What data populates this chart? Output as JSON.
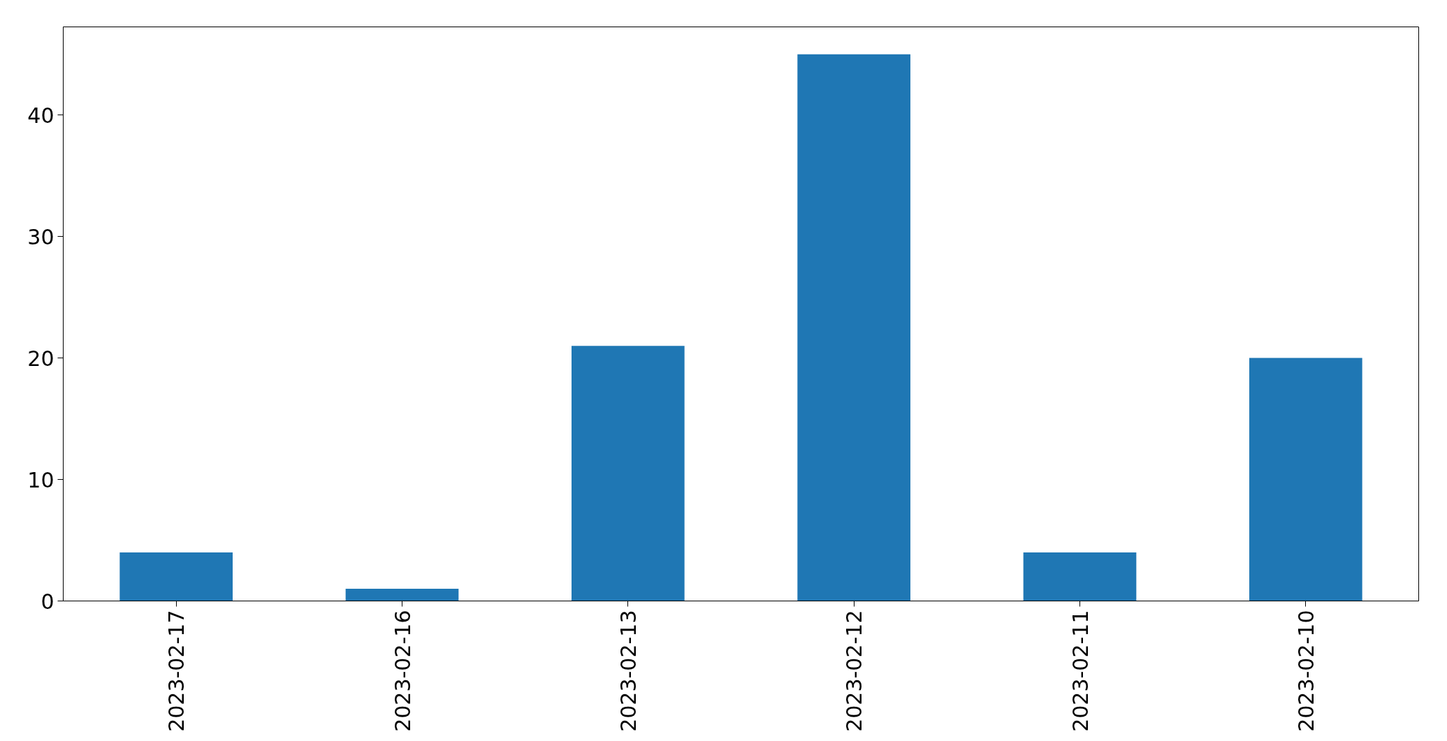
{
  "chart_data": {
    "type": "bar",
    "categories": [
      "2023-02-17",
      "2023-02-16",
      "2023-02-13",
      "2023-02-12",
      "2023-02-11",
      "2023-02-10"
    ],
    "values": [
      4,
      1,
      21,
      45,
      4,
      20
    ],
    "color": "#1f77b4",
    "ylim": [
      0,
      47.25
    ],
    "yticks": [
      0,
      10,
      20,
      30,
      40
    ],
    "grid": false
  }
}
